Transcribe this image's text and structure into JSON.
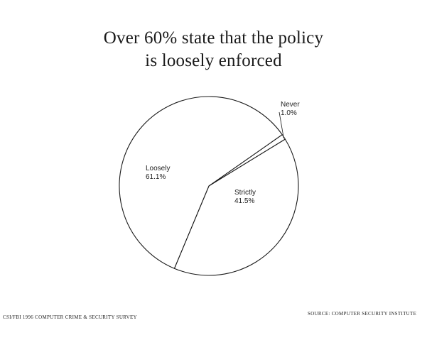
{
  "title": {
    "line1": "Over 60% state that the policy",
    "line2": "is loosely enforced"
  },
  "chart_data": {
    "type": "pie",
    "title": "Over 60% state that the policy is loosely enforced",
    "slices": [
      {
        "label": "Never",
        "value_label": "1.0%",
        "value": 1.0
      },
      {
        "label": "Strictly",
        "value_label": "41.5%",
        "value": 41.5
      },
      {
        "label": "Loosely",
        "value_label": "61.1%",
        "value": 61.1
      }
    ],
    "colors": {
      "fill": "#ffffff",
      "stroke": "#1a1a1a"
    }
  },
  "footer": {
    "left": "CSI/FBI 1996 COMPUTER CRIME & SECURITY SURVEY",
    "right": "SOURCE: COMPUTER SECURITY INSTITUTE"
  }
}
